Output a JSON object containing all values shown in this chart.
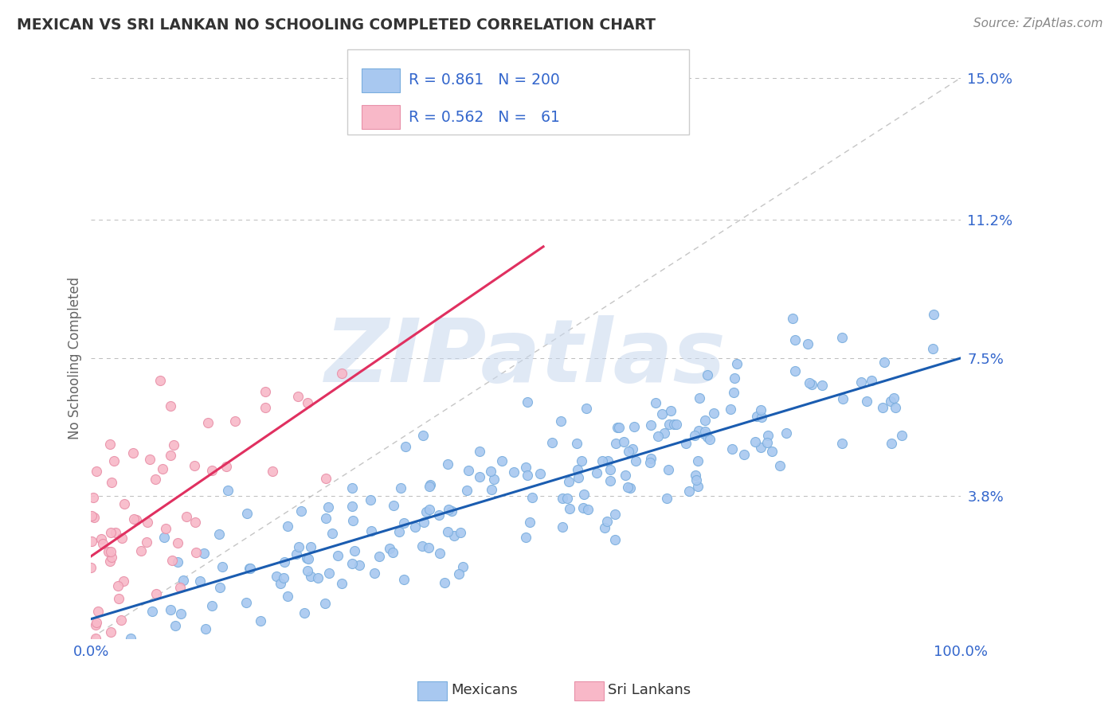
{
  "title": "MEXICAN VS SRI LANKAN NO SCHOOLING COMPLETED CORRELATION CHART",
  "source_text": "Source: ZipAtlas.com",
  "ylabel": "No Schooling Completed",
  "watermark": "ZIPatlas",
  "xlim": [
    0.0,
    1.0
  ],
  "ylim": [
    0.0,
    0.15
  ],
  "yticks": [
    0.038,
    0.075,
    0.112,
    0.15
  ],
  "ytick_labels": [
    "3.8%",
    "7.5%",
    "11.2%",
    "15.0%"
  ],
  "xtick_labels": [
    "0.0%",
    "100.0%"
  ],
  "blue_color": "#A8C8F0",
  "blue_edge_color": "#7AAEDE",
  "pink_color": "#F8B8C8",
  "pink_edge_color": "#E890A8",
  "blue_line_color": "#1A5CB0",
  "pink_line_color": "#E03060",
  "ref_line_color": "#BBBBBB",
  "legend_R_blue": "0.861",
  "legend_N_blue": "200",
  "legend_R_pink": "0.562",
  "legend_N_pink": "61",
  "legend_label_blue": "Mexicans",
  "legend_label_pink": "Sri Lankans",
  "blue_N": 200,
  "pink_N": 61,
  "background_color": "#FFFFFF",
  "grid_color": "#BBBBBB",
  "title_color": "#333333",
  "axis_label_color": "#666666",
  "tick_color": "#3366CC",
  "watermark_color": "#C8D8EE"
}
